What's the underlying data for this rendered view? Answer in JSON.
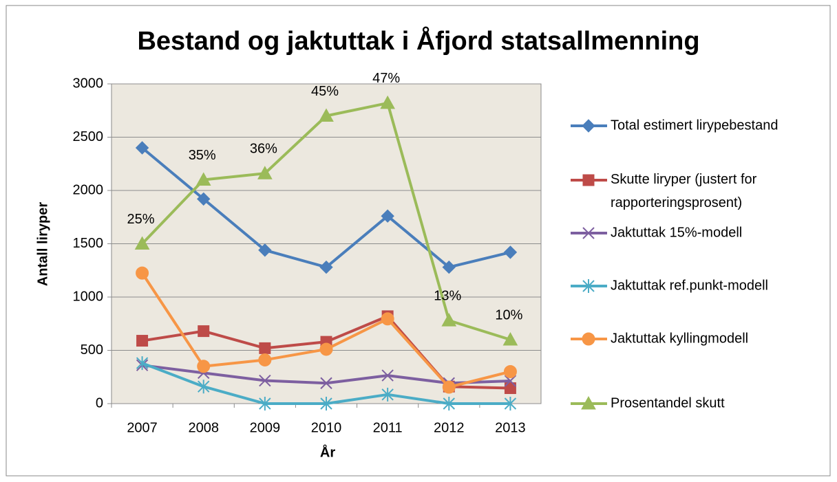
{
  "chart_data": {
    "type": "line",
    "title": "Bestand og jaktuttak i Åfjord statsallmenning",
    "xlabel": "År",
    "ylabel": "Antall liryper",
    "categories": [
      "2007",
      "2008",
      "2009",
      "2010",
      "2011",
      "2012",
      "2013"
    ],
    "ylim": [
      0,
      3000
    ],
    "yticks": [
      0,
      500,
      1000,
      1500,
      2000,
      2500,
      3000
    ],
    "y2lim": [
      0,
      50
    ],
    "grid": true,
    "legend": "right",
    "series": [
      {
        "name": "Total estimert lirypebestand",
        "color": "#4a7ebb",
        "marker": "diamond",
        "values": [
          2400,
          1920,
          1440,
          1280,
          1760,
          1280,
          1420
        ]
      },
      {
        "name": "Skutte liryper (justert for rapporteringsprosent)",
        "color": "#be4b48",
        "marker": "square",
        "values": [
          590,
          680,
          520,
          580,
          820,
          160,
          145
        ]
      },
      {
        "name": "Jaktuttak 15%-modell",
        "color": "#7d5fa0",
        "marker": "x",
        "values": [
          360,
          288,
          216,
          192,
          264,
          192,
          213
        ]
      },
      {
        "name": "Jaktuttak ref.punkt-modell",
        "color": "#4bacc6",
        "marker": "star",
        "values": [
          380,
          160,
          0,
          0,
          85,
          0,
          0
        ]
      },
      {
        "name": "Jaktuttak kyllingmodell",
        "color": "#f79646",
        "marker": "circle",
        "values": [
          1225,
          350,
          410,
          510,
          795,
          155,
          300
        ]
      },
      {
        "name": "Prosentandel skutt",
        "color": "#9bbb59",
        "marker": "triangle",
        "axis": "y2",
        "values": [
          25,
          35,
          36,
          45,
          47,
          13,
          10
        ],
        "value_labels": [
          "25%",
          "35%",
          "36%",
          "45%",
          "47%",
          "13%",
          "10%"
        ]
      }
    ]
  }
}
